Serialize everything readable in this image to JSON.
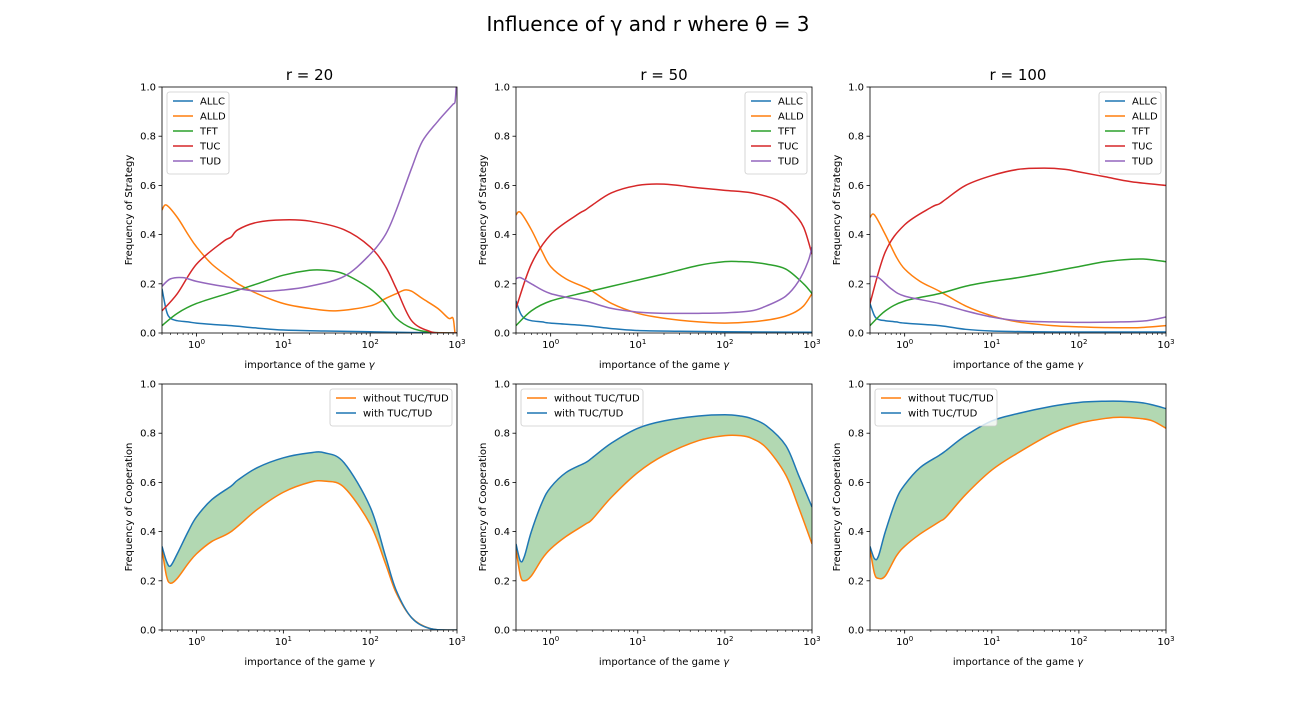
{
  "figure": {
    "title": "Influence of γ and r where θ = 3",
    "colors": {
      "ALLC": "#1f77b4",
      "ALLD": "#ff7f0e",
      "TFT": "#2ca02c",
      "TUC": "#d62728",
      "TUD": "#9467bd",
      "fill": "#b2d8b2"
    }
  },
  "chart_data": [
    {
      "type": "line",
      "panel": "strategy",
      "title": "r = 20",
      "xlabel": "importance of the game γ",
      "ylabel": "Frequency of Strategy",
      "xscale": "log",
      "xlim": [
        0.4,
        1000
      ],
      "ylim": [
        0,
        1
      ],
      "xticks": [
        "10^0",
        "10^1",
        "10^2",
        "10^3"
      ],
      "yticks": [
        "0.0",
        "0.2",
        "0.4",
        "0.6",
        "0.8",
        "1.0"
      ],
      "legend_position": "upper left",
      "series": [
        {
          "name": "ALLC",
          "color": "#1f77b4",
          "x": [
            0.4,
            0.45,
            0.5,
            0.6,
            0.8,
            1,
            1.5,
            2.5,
            5,
            10,
            30,
            100,
            300,
            700,
            950,
            1000
          ],
          "y": [
            0.18,
            0.09,
            0.06,
            0.05,
            0.045,
            0.04,
            0.035,
            0.03,
            0.02,
            0.012,
            0.008,
            0.005,
            0.002,
            0.001,
            0.0,
            0.0
          ]
        },
        {
          "name": "ALLD",
          "color": "#ff7f0e",
          "x": [
            0.4,
            0.45,
            0.6,
            0.8,
            1,
            1.5,
            2.5,
            3,
            5,
            10,
            20,
            40,
            100,
            150,
            200,
            250,
            300,
            400,
            600,
            800,
            900,
            950,
            1000
          ],
          "y": [
            0.5,
            0.52,
            0.47,
            0.4,
            0.35,
            0.28,
            0.22,
            0.2,
            0.16,
            0.12,
            0.1,
            0.09,
            0.11,
            0.14,
            0.16,
            0.175,
            0.17,
            0.14,
            0.1,
            0.06,
            0.06,
            0.0,
            0.0
          ]
        },
        {
          "name": "TFT",
          "color": "#2ca02c",
          "x": [
            0.4,
            0.6,
            1,
            2.5,
            5,
            10,
            20,
            30,
            50,
            100,
            150,
            200,
            300,
            500,
            1000
          ],
          "y": [
            0.03,
            0.08,
            0.12,
            0.165,
            0.2,
            0.235,
            0.255,
            0.255,
            0.24,
            0.18,
            0.12,
            0.06,
            0.02,
            0.003,
            0.0
          ]
        },
        {
          "name": "TUC",
          "color": "#d62728",
          "x": [
            0.4,
            0.6,
            1,
            2,
            2.5,
            3,
            5,
            10,
            20,
            50,
            100,
            150,
            200,
            300,
            500,
            700,
            1000
          ],
          "y": [
            0.09,
            0.16,
            0.28,
            0.37,
            0.39,
            0.42,
            0.45,
            0.46,
            0.455,
            0.42,
            0.35,
            0.27,
            0.18,
            0.05,
            0.005,
            0.0,
            0.0
          ]
        },
        {
          "name": "TUD",
          "color": "#9467bd",
          "x": [
            0.4,
            0.5,
            0.7,
            1,
            2,
            5,
            10,
            20,
            50,
            100,
            150,
            200,
            300,
            400,
            600,
            800,
            900,
            950,
            980,
            1000
          ],
          "y": [
            0.19,
            0.22,
            0.225,
            0.21,
            0.19,
            0.17,
            0.175,
            0.19,
            0.23,
            0.32,
            0.4,
            0.5,
            0.67,
            0.78,
            0.86,
            0.91,
            0.93,
            0.94,
            1.0,
            1.0
          ]
        }
      ]
    },
    {
      "type": "line",
      "panel": "strategy",
      "title": "r = 50",
      "xlabel": "importance of the game γ",
      "ylabel": "Frequency of Strategy",
      "xscale": "log",
      "xlim": [
        0.4,
        1000
      ],
      "ylim": [
        0,
        1
      ],
      "xticks": [
        "10^0",
        "10^1",
        "10^2",
        "10^3"
      ],
      "yticks": [
        "0.0",
        "0.2",
        "0.4",
        "0.6",
        "0.8",
        "1.0"
      ],
      "legend_position": "upper right",
      "series": [
        {
          "name": "ALLC",
          "color": "#1f77b4",
          "x": [
            0.4,
            0.45,
            0.5,
            0.6,
            0.8,
            1,
            2.5,
            5,
            10,
            30,
            100,
            300,
            1000
          ],
          "y": [
            0.13,
            0.08,
            0.06,
            0.05,
            0.045,
            0.04,
            0.03,
            0.018,
            0.01,
            0.007,
            0.005,
            0.004,
            0.003
          ]
        },
        {
          "name": "ALLD",
          "color": "#ff7f0e",
          "x": [
            0.4,
            0.45,
            0.6,
            0.8,
            1,
            1.5,
            2.5,
            3,
            5,
            10,
            20,
            50,
            100,
            200,
            400,
            600,
            800,
            1000
          ],
          "y": [
            0.48,
            0.49,
            0.42,
            0.33,
            0.27,
            0.22,
            0.185,
            0.17,
            0.12,
            0.08,
            0.06,
            0.045,
            0.04,
            0.045,
            0.06,
            0.08,
            0.11,
            0.16
          ]
        },
        {
          "name": "TFT",
          "color": "#2ca02c",
          "x": [
            0.4,
            0.6,
            1,
            2.5,
            5,
            10,
            20,
            50,
            100,
            150,
            200,
            300,
            500,
            800,
            1000
          ],
          "y": [
            0.03,
            0.09,
            0.13,
            0.165,
            0.19,
            0.215,
            0.24,
            0.275,
            0.29,
            0.29,
            0.288,
            0.28,
            0.26,
            0.2,
            0.16
          ]
        },
        {
          "name": "TUC",
          "color": "#d62728",
          "x": [
            0.4,
            0.6,
            1,
            2,
            2.5,
            3,
            5,
            10,
            20,
            50,
            100,
            200,
            400,
            600,
            800,
            1000
          ],
          "y": [
            0.1,
            0.28,
            0.4,
            0.48,
            0.5,
            0.52,
            0.57,
            0.6,
            0.605,
            0.59,
            0.58,
            0.57,
            0.54,
            0.49,
            0.43,
            0.32
          ]
        },
        {
          "name": "TUD",
          "color": "#9467bd",
          "x": [
            0.4,
            0.45,
            0.6,
            1,
            2.5,
            5,
            10,
            20,
            50,
            100,
            200,
            300,
            500,
            700,
            900,
            1000
          ],
          "y": [
            0.22,
            0.225,
            0.2,
            0.16,
            0.13,
            0.1,
            0.085,
            0.08,
            0.08,
            0.082,
            0.09,
            0.11,
            0.15,
            0.21,
            0.29,
            0.35
          ]
        }
      ]
    },
    {
      "type": "line",
      "panel": "strategy",
      "title": "r = 100",
      "xlabel": "importance of the game γ",
      "ylabel": "Frequency of Strategy",
      "xscale": "log",
      "xlim": [
        0.4,
        1000
      ],
      "ylim": [
        0,
        1
      ],
      "xticks": [
        "10^0",
        "10^1",
        "10^2",
        "10^3"
      ],
      "yticks": [
        "0.0",
        "0.2",
        "0.4",
        "0.6",
        "0.8",
        "1.0"
      ],
      "legend_position": "upper right",
      "series": [
        {
          "name": "ALLC",
          "color": "#1f77b4",
          "x": [
            0.4,
            0.45,
            0.5,
            0.6,
            0.8,
            1,
            2.5,
            5,
            10,
            30,
            100,
            300,
            1000
          ],
          "y": [
            0.12,
            0.07,
            0.055,
            0.05,
            0.045,
            0.04,
            0.03,
            0.015,
            0.008,
            0.005,
            0.004,
            0.004,
            0.004
          ]
        },
        {
          "name": "ALLD",
          "color": "#ff7f0e",
          "x": [
            0.4,
            0.45,
            0.6,
            0.8,
            1,
            1.5,
            2.5,
            5,
            10,
            20,
            50,
            100,
            200,
            500,
            1000
          ],
          "y": [
            0.47,
            0.48,
            0.4,
            0.31,
            0.26,
            0.21,
            0.17,
            0.11,
            0.07,
            0.045,
            0.03,
            0.025,
            0.022,
            0.022,
            0.03
          ]
        },
        {
          "name": "TFT",
          "color": "#2ca02c",
          "x": [
            0.4,
            0.6,
            1,
            2.5,
            5,
            10,
            20,
            50,
            100,
            200,
            400,
            600,
            1000
          ],
          "y": [
            0.03,
            0.09,
            0.13,
            0.16,
            0.19,
            0.21,
            0.225,
            0.25,
            0.27,
            0.29,
            0.3,
            0.3,
            0.29
          ]
        },
        {
          "name": "TUC",
          "color": "#d62728",
          "x": [
            0.4,
            0.6,
            1,
            2,
            2.5,
            3,
            5,
            10,
            20,
            40,
            70,
            100,
            200,
            400,
            1000
          ],
          "y": [
            0.12,
            0.33,
            0.44,
            0.51,
            0.525,
            0.545,
            0.6,
            0.64,
            0.665,
            0.67,
            0.665,
            0.655,
            0.635,
            0.615,
            0.6
          ]
        },
        {
          "name": "TUD",
          "color": "#9467bd",
          "x": [
            0.4,
            0.5,
            0.7,
            1,
            2.5,
            5,
            10,
            20,
            50,
            100,
            300,
            600,
            1000
          ],
          "y": [
            0.23,
            0.225,
            0.18,
            0.15,
            0.12,
            0.09,
            0.065,
            0.05,
            0.045,
            0.043,
            0.045,
            0.05,
            0.065
          ]
        }
      ]
    },
    {
      "type": "area",
      "panel": "cooperation",
      "title": "",
      "xlabel": "importance of the game γ",
      "ylabel": "Frequency of Cooperation",
      "xscale": "log",
      "xlim": [
        0.4,
        1000
      ],
      "ylim": [
        0,
        1
      ],
      "xticks": [
        "10^0",
        "10^1",
        "10^2",
        "10^3"
      ],
      "yticks": [
        "0.0",
        "0.2",
        "0.4",
        "0.6",
        "0.8",
        "1.0"
      ],
      "legend_position": "upper right",
      "series": [
        {
          "name": "without TUC/TUD",
          "color": "#ff7f0e",
          "x": [
            0.4,
            0.45,
            0.5,
            0.6,
            0.8,
            1,
            1.5,
            2.5,
            5,
            10,
            20,
            30,
            50,
            100,
            150,
            200,
            300,
            500,
            1000
          ],
          "y": [
            0.33,
            0.22,
            0.19,
            0.21,
            0.27,
            0.31,
            0.36,
            0.4,
            0.49,
            0.56,
            0.6,
            0.605,
            0.58,
            0.43,
            0.27,
            0.15,
            0.05,
            0.005,
            0.0
          ]
        },
        {
          "name": "with TUC/TUD",
          "color": "#1f77b4",
          "x": [
            0.4,
            0.45,
            0.5,
            0.6,
            0.8,
            1,
            1.5,
            2.5,
            3,
            5,
            10,
            20,
            30,
            50,
            100,
            150,
            200,
            300,
            500,
            1000
          ],
          "y": [
            0.34,
            0.28,
            0.26,
            0.31,
            0.4,
            0.46,
            0.53,
            0.585,
            0.61,
            0.66,
            0.7,
            0.72,
            0.72,
            0.68,
            0.5,
            0.3,
            0.16,
            0.05,
            0.005,
            0.0
          ]
        }
      ]
    },
    {
      "type": "area",
      "panel": "cooperation",
      "title": "",
      "xlabel": "importance of the game γ",
      "ylabel": "Frequency of Cooperation",
      "xscale": "log",
      "xlim": [
        0.4,
        1000
      ],
      "ylim": [
        0,
        1
      ],
      "xticks": [
        "10^0",
        "10^1",
        "10^2",
        "10^3"
      ],
      "yticks": [
        "0.0",
        "0.2",
        "0.4",
        "0.6",
        "0.8",
        "1.0"
      ],
      "legend_position": "upper left",
      "series": [
        {
          "name": "without TUC/TUD",
          "color": "#ff7f0e",
          "x": [
            0.4,
            0.45,
            0.5,
            0.6,
            0.8,
            1,
            1.5,
            2.5,
            3,
            5,
            10,
            20,
            50,
            100,
            150,
            200,
            300,
            500,
            700,
            1000
          ],
          "y": [
            0.33,
            0.22,
            0.2,
            0.22,
            0.29,
            0.33,
            0.38,
            0.43,
            0.45,
            0.54,
            0.64,
            0.71,
            0.77,
            0.79,
            0.79,
            0.78,
            0.74,
            0.63,
            0.5,
            0.35
          ]
        },
        {
          "name": "with TUC/TUD",
          "color": "#1f77b4",
          "x": [
            0.4,
            0.45,
            0.5,
            0.6,
            0.8,
            1,
            1.5,
            2.5,
            3,
            5,
            10,
            20,
            50,
            100,
            150,
            200,
            300,
            500,
            700,
            1000
          ],
          "y": [
            0.35,
            0.28,
            0.3,
            0.4,
            0.52,
            0.58,
            0.64,
            0.68,
            0.7,
            0.76,
            0.82,
            0.85,
            0.87,
            0.875,
            0.87,
            0.86,
            0.83,
            0.75,
            0.63,
            0.5
          ]
        }
      ]
    },
    {
      "type": "area",
      "panel": "cooperation",
      "title": "",
      "xlabel": "importance of the game γ",
      "ylabel": "Frequency of Cooperation",
      "xscale": "log",
      "xlim": [
        0.4,
        1000
      ],
      "ylim": [
        0,
        1
      ],
      "xticks": [
        "10^0",
        "10^1",
        "10^2",
        "10^3"
      ],
      "yticks": [
        "0.0",
        "0.2",
        "0.4",
        "0.6",
        "0.8",
        "1.0"
      ],
      "legend_position": "upper left",
      "series": [
        {
          "name": "without TUC/TUD",
          "color": "#ff7f0e",
          "x": [
            0.4,
            0.45,
            0.5,
            0.6,
            0.8,
            1,
            1.5,
            2.5,
            3,
            5,
            10,
            20,
            50,
            100,
            200,
            300,
            500,
            700,
            1000
          ],
          "y": [
            0.33,
            0.23,
            0.21,
            0.22,
            0.3,
            0.34,
            0.39,
            0.44,
            0.46,
            0.55,
            0.65,
            0.72,
            0.8,
            0.84,
            0.86,
            0.865,
            0.86,
            0.85,
            0.82
          ]
        },
        {
          "name": "with TUC/TUD",
          "color": "#1f77b4",
          "x": [
            0.4,
            0.45,
            0.5,
            0.6,
            0.8,
            1,
            1.5,
            2.5,
            3,
            5,
            10,
            20,
            50,
            100,
            200,
            300,
            500,
            700,
            1000
          ],
          "y": [
            0.34,
            0.29,
            0.3,
            0.4,
            0.53,
            0.59,
            0.66,
            0.71,
            0.73,
            0.79,
            0.85,
            0.88,
            0.91,
            0.925,
            0.93,
            0.93,
            0.925,
            0.915,
            0.9
          ]
        }
      ]
    }
  ]
}
